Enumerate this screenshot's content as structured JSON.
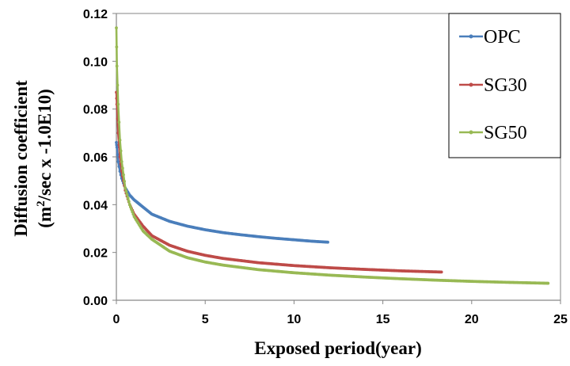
{
  "chart_data": {
    "type": "line",
    "xlabel": "Exposed period(year)",
    "ylabel_line1": "Diffusion coefficient",
    "ylabel_line2_prefix": "(m",
    "ylabel_line2_sup": "2",
    "ylabel_line2_suffix": "/sec x -1.0E10)",
    "xlim": [
      0,
      25
    ],
    "ylim": [
      0,
      0.12
    ],
    "x_ticks": [
      "0",
      "5",
      "10",
      "15",
      "20",
      "25"
    ],
    "y_ticks": [
      "0.00",
      "0.02",
      "0.04",
      "0.06",
      "0.08",
      "0.10",
      "0.12"
    ],
    "grid": false,
    "legend_position": "top-right",
    "series": [
      {
        "name": "OPC",
        "color": "#4a7ebb",
        "x": [
          0.0,
          0.03,
          0.1,
          0.2,
          0.3,
          0.5,
          0.75,
          1.0,
          1.5,
          2.0,
          3.0,
          4.0,
          5.0,
          6.0,
          7.0,
          8.0,
          9.0,
          10.0,
          11.0,
          11.9
        ],
        "y": [
          0.066,
          0.064,
          0.058,
          0.054,
          0.051,
          0.047,
          0.044,
          0.042,
          0.039,
          0.036,
          0.033,
          0.031,
          0.0295,
          0.0283,
          0.0274,
          0.0266,
          0.0259,
          0.0253,
          0.0247,
          0.0243
        ]
      },
      {
        "name": "SG30",
        "color": "#be4b48",
        "x": [
          0.0,
          0.03,
          0.1,
          0.2,
          0.3,
          0.5,
          0.75,
          1.0,
          1.5,
          2.0,
          3.0,
          4.0,
          5.0,
          6.0,
          8.0,
          10.0,
          12.0,
          14.0,
          16.0,
          18.3
        ],
        "y": [
          0.087,
          0.082,
          0.07,
          0.06,
          0.054,
          0.046,
          0.04,
          0.036,
          0.031,
          0.027,
          0.023,
          0.0205,
          0.0188,
          0.0175,
          0.0157,
          0.0145,
          0.0136,
          0.0129,
          0.0123,
          0.0118
        ]
      },
      {
        "name": "SG50",
        "color": "#98b954",
        "x": [
          0.0,
          0.03,
          0.1,
          0.2,
          0.3,
          0.5,
          0.75,
          1.0,
          1.5,
          2.0,
          3.0,
          4.0,
          5.0,
          6.0,
          8.0,
          10.0,
          12.0,
          14.0,
          16.0,
          18.0,
          20.0,
          22.0,
          24.3
        ],
        "y": [
          0.114,
          0.098,
          0.082,
          0.067,
          0.058,
          0.047,
          0.04,
          0.035,
          0.029,
          0.0255,
          0.0205,
          0.0178,
          0.016,
          0.0147,
          0.0128,
          0.0115,
          0.0105,
          0.0097,
          0.009,
          0.0084,
          0.0079,
          0.0075,
          0.0071
        ]
      }
    ]
  }
}
